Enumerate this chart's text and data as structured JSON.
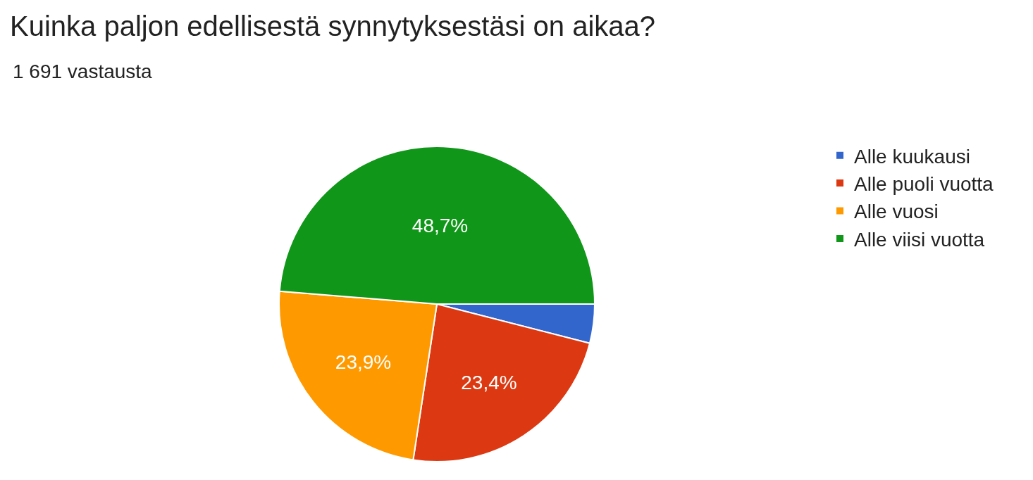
{
  "chart_data": {
    "type": "pie",
    "title": "Kuinka paljon edellisestä synnytyksestäsi on aikaa?",
    "subtitle": "1 691 vastausta",
    "categories": [
      "Alle kuukausi",
      "Alle puoli vuotta",
      "Alle vuosi",
      "Alle viisi vuotta"
    ],
    "values": [
      4.0,
      23.4,
      23.9,
      48.7
    ],
    "colors": [
      "#3366cc",
      "#dc3912",
      "#ff9900",
      "#109618"
    ],
    "value_labels": [
      null,
      "23,4%",
      "23,9%",
      "48,7%"
    ],
    "legend": "right"
  }
}
